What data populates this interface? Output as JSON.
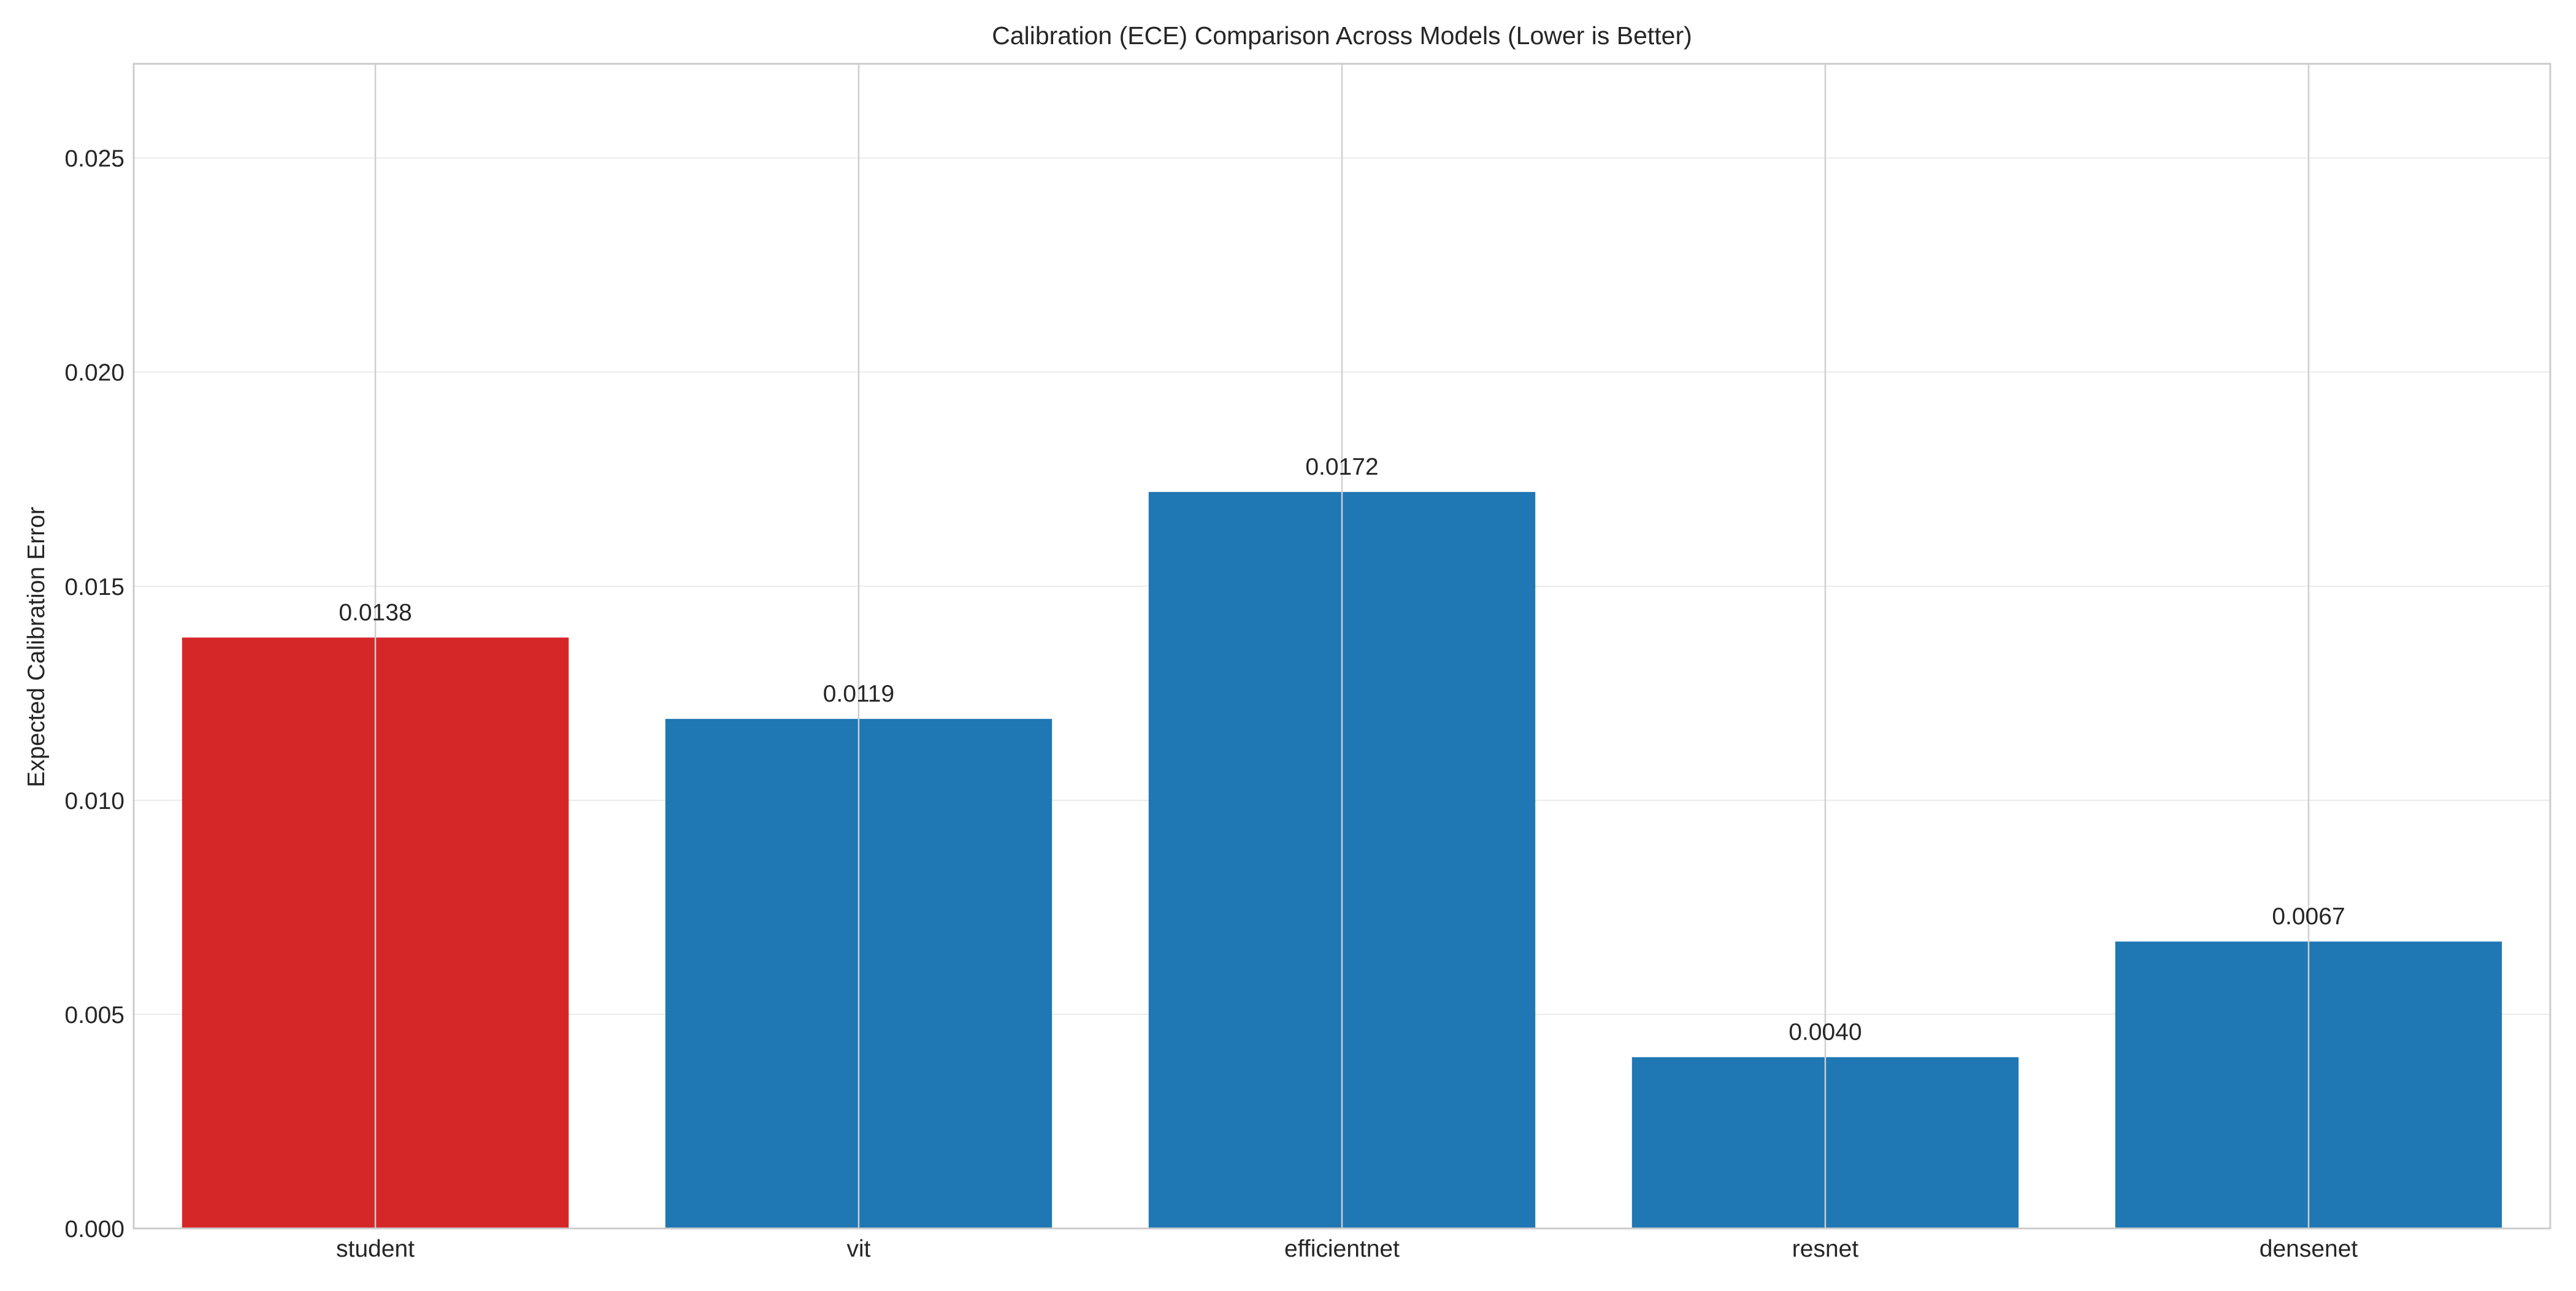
{
  "chart_data": {
    "type": "bar",
    "title": "Calibration (ECE) Comparison Across Models (Lower is Better)",
    "xlabel": "",
    "ylabel": "Expected Calibration Error",
    "categories": [
      "student",
      "vit",
      "efficientnet",
      "resnet",
      "densenet"
    ],
    "values": [
      0.0138,
      0.0119,
      0.0172,
      0.004,
      0.0067
    ],
    "value_labels": [
      "0.0138",
      "0.0119",
      "0.0172",
      "0.0040",
      "0.0067"
    ],
    "bar_colors": [
      "#d62728",
      "#1f77b4",
      "#1f77b4",
      "#1f77b4",
      "#1f77b4"
    ],
    "ylim": [
      0,
      0.0272
    ],
    "yticks": [
      0,
      0.005,
      0.01,
      0.015,
      0.02,
      0.025
    ],
    "ytick_labels": [
      "0.000",
      "0.005",
      "0.010",
      "0.015",
      "0.020",
      "0.025"
    ],
    "grid": true,
    "legend": "none"
  }
}
